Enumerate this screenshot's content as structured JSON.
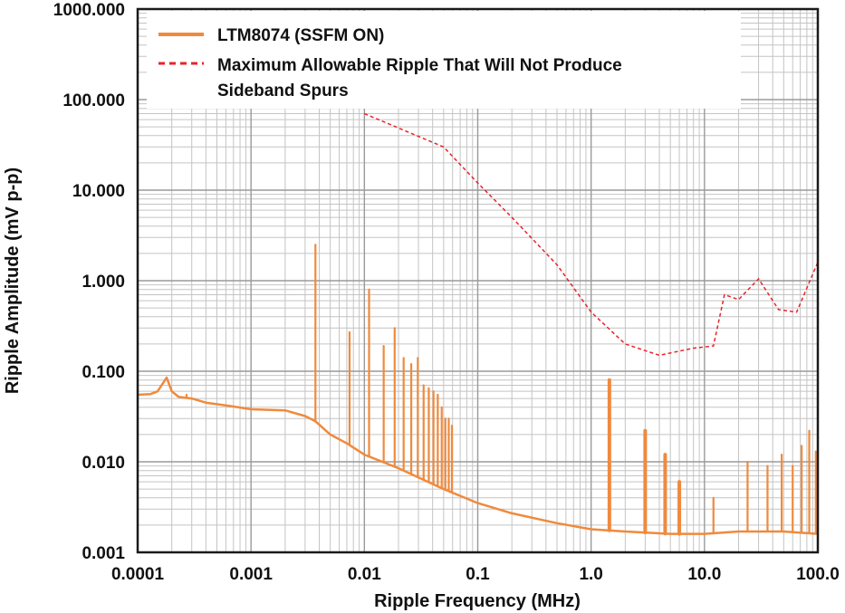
{
  "chart_data": {
    "type": "line",
    "title": "",
    "xlabel": "Ripple Frequency (MHz)",
    "ylabel": "Ripple Amplitude (mV p-p)",
    "xscale": "log",
    "yscale": "log",
    "xlim": [
      0.0001,
      100
    ],
    "ylim": [
      0.001,
      1000
    ],
    "grid": true,
    "legend_position": "top",
    "x_tick_labels": [
      "0.0001",
      "0.001",
      "0.01",
      "0.1",
      "1.0",
      "10.0",
      "100.0"
    ],
    "y_tick_labels": [
      "0.001",
      "0.010",
      "0.100",
      "1.000",
      "10.000",
      "100.000",
      "1000.000"
    ],
    "series": [
      {
        "name": "LTM8074 (SSFM ON)",
        "color": "#ef8a3d",
        "style": "solid",
        "noise_floor": [
          [
            0.0001,
            0.055
          ],
          [
            0.00013,
            0.056
          ],
          [
            0.00015,
            0.06
          ],
          [
            0.00018,
            0.085
          ],
          [
            0.0002,
            0.06
          ],
          [
            0.00023,
            0.052
          ],
          [
            0.0003,
            0.05
          ],
          [
            0.0004,
            0.045
          ],
          [
            0.0006,
            0.042
          ],
          [
            0.001,
            0.038
          ],
          [
            0.002,
            0.037
          ],
          [
            0.003,
            0.032
          ],
          [
            0.0037,
            0.028
          ],
          [
            0.005,
            0.02
          ],
          [
            0.007,
            0.016
          ],
          [
            0.01,
            0.012
          ],
          [
            0.02,
            0.0085
          ],
          [
            0.05,
            0.005
          ],
          [
            0.1,
            0.0035
          ],
          [
            0.2,
            0.0027
          ],
          [
            0.5,
            0.0021
          ],
          [
            1,
            0.0018
          ],
          [
            2,
            0.0017
          ],
          [
            5,
            0.0016
          ],
          [
            10,
            0.0016
          ],
          [
            20,
            0.0017
          ],
          [
            50,
            0.0017
          ],
          [
            100,
            0.0016
          ]
        ],
        "spurs": [
          [
            0.00018,
            0.085
          ],
          [
            0.00027,
            0.055
          ],
          [
            0.0037,
            2.5
          ],
          [
            0.0074,
            0.27
          ],
          [
            0.011,
            0.8
          ],
          [
            0.0148,
            0.19
          ],
          [
            0.0185,
            0.3
          ],
          [
            0.0222,
            0.14
          ],
          [
            0.0259,
            0.12
          ],
          [
            0.0296,
            0.14
          ],
          [
            0.0333,
            0.07
          ],
          [
            0.037,
            0.065
          ],
          [
            0.0407,
            0.06
          ],
          [
            0.0444,
            0.055
          ],
          [
            0.0481,
            0.04
          ],
          [
            0.0518,
            0.03
          ],
          [
            0.0555,
            0.03
          ],
          [
            0.0592,
            0.025
          ],
          [
            1.45,
            0.08
          ],
          [
            3.0,
            0.022
          ],
          [
            4.5,
            0.012
          ],
          [
            6.0,
            0.006
          ],
          [
            12.0,
            0.004
          ],
          [
            24.0,
            0.01
          ],
          [
            36.0,
            0.009
          ],
          [
            48.0,
            0.012
          ],
          [
            60.0,
            0.009
          ],
          [
            72.0,
            0.015
          ],
          [
            84.0,
            0.022
          ],
          [
            96.0,
            0.013
          ]
        ]
      },
      {
        "name": "Maximum Allowable Ripple That Will Not Produce Sideband Spurs",
        "color": "#e8232a",
        "style": "dashed",
        "points": [
          [
            0.01,
            70
          ],
          [
            0.05,
            30
          ],
          [
            0.1,
            12
          ],
          [
            0.2,
            5
          ],
          [
            0.5,
            1.5
          ],
          [
            1,
            0.45
          ],
          [
            2,
            0.2
          ],
          [
            4,
            0.15
          ],
          [
            8,
            0.18
          ],
          [
            12,
            0.19
          ],
          [
            15,
            0.7
          ],
          [
            20,
            0.62
          ],
          [
            30,
            1.05
          ],
          [
            45,
            0.48
          ],
          [
            65,
            0.45
          ],
          [
            100,
            1.6
          ]
        ]
      }
    ]
  }
}
